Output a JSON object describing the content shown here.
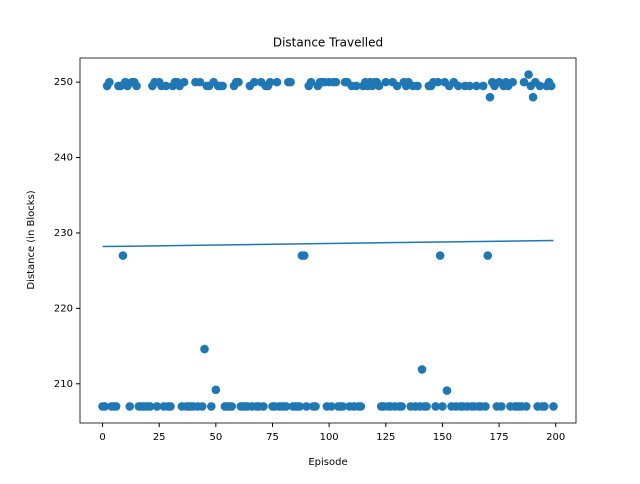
{
  "chart_data": {
    "type": "scatter",
    "title": "Distance Travelled",
    "x_label": "Episode",
    "y_label": "Distance (in Blocks)",
    "color": "#1f77b4",
    "x": [
      0,
      1,
      2,
      3,
      4,
      5,
      6,
      7,
      8,
      9,
      10,
      11,
      12,
      13,
      14,
      15,
      16,
      17,
      18,
      19,
      20,
      21,
      22,
      23,
      24,
      25,
      26,
      27,
      28,
      29,
      30,
      31,
      32,
      33,
      34,
      35,
      36,
      37,
      38,
      39,
      40,
      41,
      42,
      43,
      44,
      45,
      46,
      47,
      48,
      49,
      50,
      51,
      52,
      53,
      54,
      55,
      56,
      57,
      58,
      59,
      60,
      61,
      62,
      63,
      64,
      65,
      66,
      67,
      68,
      69,
      70,
      71,
      72,
      73,
      74,
      75,
      76,
      77,
      78,
      79,
      80,
      81,
      82,
      83,
      84,
      85,
      86,
      87,
      88,
      89,
      90,
      91,
      92,
      93,
      94,
      95,
      96,
      97,
      98,
      99,
      100,
      101,
      102,
      103,
      104,
      105,
      106,
      107,
      108,
      109,
      110,
      111,
      112,
      113,
      114,
      115,
      116,
      117,
      118,
      119,
      120,
      121,
      122,
      123,
      124,
      125,
      126,
      127,
      128,
      129,
      130,
      131,
      132,
      133,
      134,
      135,
      136,
      137,
      138,
      139,
      140,
      141,
      142,
      143,
      144,
      145,
      146,
      147,
      148,
      149,
      150,
      151,
      152,
      153,
      154,
      155,
      156,
      157,
      158,
      159,
      160,
      161,
      162,
      163,
      164,
      165,
      166,
      167,
      168,
      169,
      170,
      171,
      172,
      173,
      174,
      175,
      176,
      177,
      178,
      179,
      180,
      181,
      182,
      183,
      184,
      185,
      186,
      187,
      188,
      189,
      190,
      191,
      192,
      193,
      194,
      195,
      196,
      197,
      198,
      199
    ],
    "values": [
      207,
      207,
      249.5,
      250,
      207,
      207,
      207,
      249.5,
      249.5,
      227,
      250,
      249.5,
      207,
      250,
      250,
      249.5,
      207,
      207,
      207,
      207,
      207,
      207,
      249.5,
      250,
      207,
      250,
      249.5,
      207,
      249.5,
      207,
      207,
      249.5,
      250,
      250,
      249.5,
      207,
      250,
      207,
      207,
      207,
      207,
      250,
      207,
      250,
      207,
      214.6,
      249.5,
      249.5,
      207,
      250,
      209.2,
      249.5,
      249.5,
      249.5,
      207,
      207,
      207,
      207,
      249.5,
      250,
      250,
      207,
      207,
      207,
      207,
      249.5,
      207,
      250,
      207,
      207,
      250,
      207,
      249.5,
      249.5,
      250,
      207,
      207,
      250,
      207,
      207,
      207,
      207,
      250,
      250,
      207,
      207,
      207,
      207,
      227,
      227,
      207,
      249.5,
      250,
      207,
      207,
      249.5,
      250,
      250,
      250,
      207,
      250,
      207,
      250,
      250,
      207,
      207,
      207,
      250,
      250,
      207,
      249.5,
      207,
      249.5,
      207,
      207,
      249.5,
      250,
      249.5,
      250,
      249.5,
      250,
      250,
      249.5,
      207,
      207,
      250,
      207,
      207,
      250,
      207,
      249.5,
      207,
      207,
      250,
      249.5,
      250,
      207,
      249.5,
      207,
      249.5,
      207,
      211.9,
      207,
      207,
      249.5,
      249.5,
      250,
      207,
      250,
      227,
      207,
      250,
      209.1,
      249.5,
      207,
      250,
      207,
      249.5,
      207,
      207,
      249.5,
      207,
      249.5,
      207,
      207,
      249.5,
      207,
      207,
      249.5,
      207,
      227,
      248,
      250,
      249.5,
      207,
      250,
      207,
      249.5,
      250,
      249.5,
      207,
      250,
      207,
      207,
      207,
      207,
      250,
      207,
      251,
      249.5,
      248,
      250,
      207,
      249.5,
      207,
      207,
      249.5,
      250,
      249.5,
      207
    ],
    "trend_line": {
      "x": [
        0,
        199
      ],
      "values": [
        228.2,
        229.0
      ]
    },
    "xlim": [
      -9.95,
      208.95
    ],
    "ylim": [
      204.8,
      253.2
    ],
    "xticks": [
      0,
      25,
      50,
      75,
      100,
      125,
      150,
      175,
      200
    ],
    "yticks": [
      210,
      220,
      230,
      240,
      250
    ]
  }
}
